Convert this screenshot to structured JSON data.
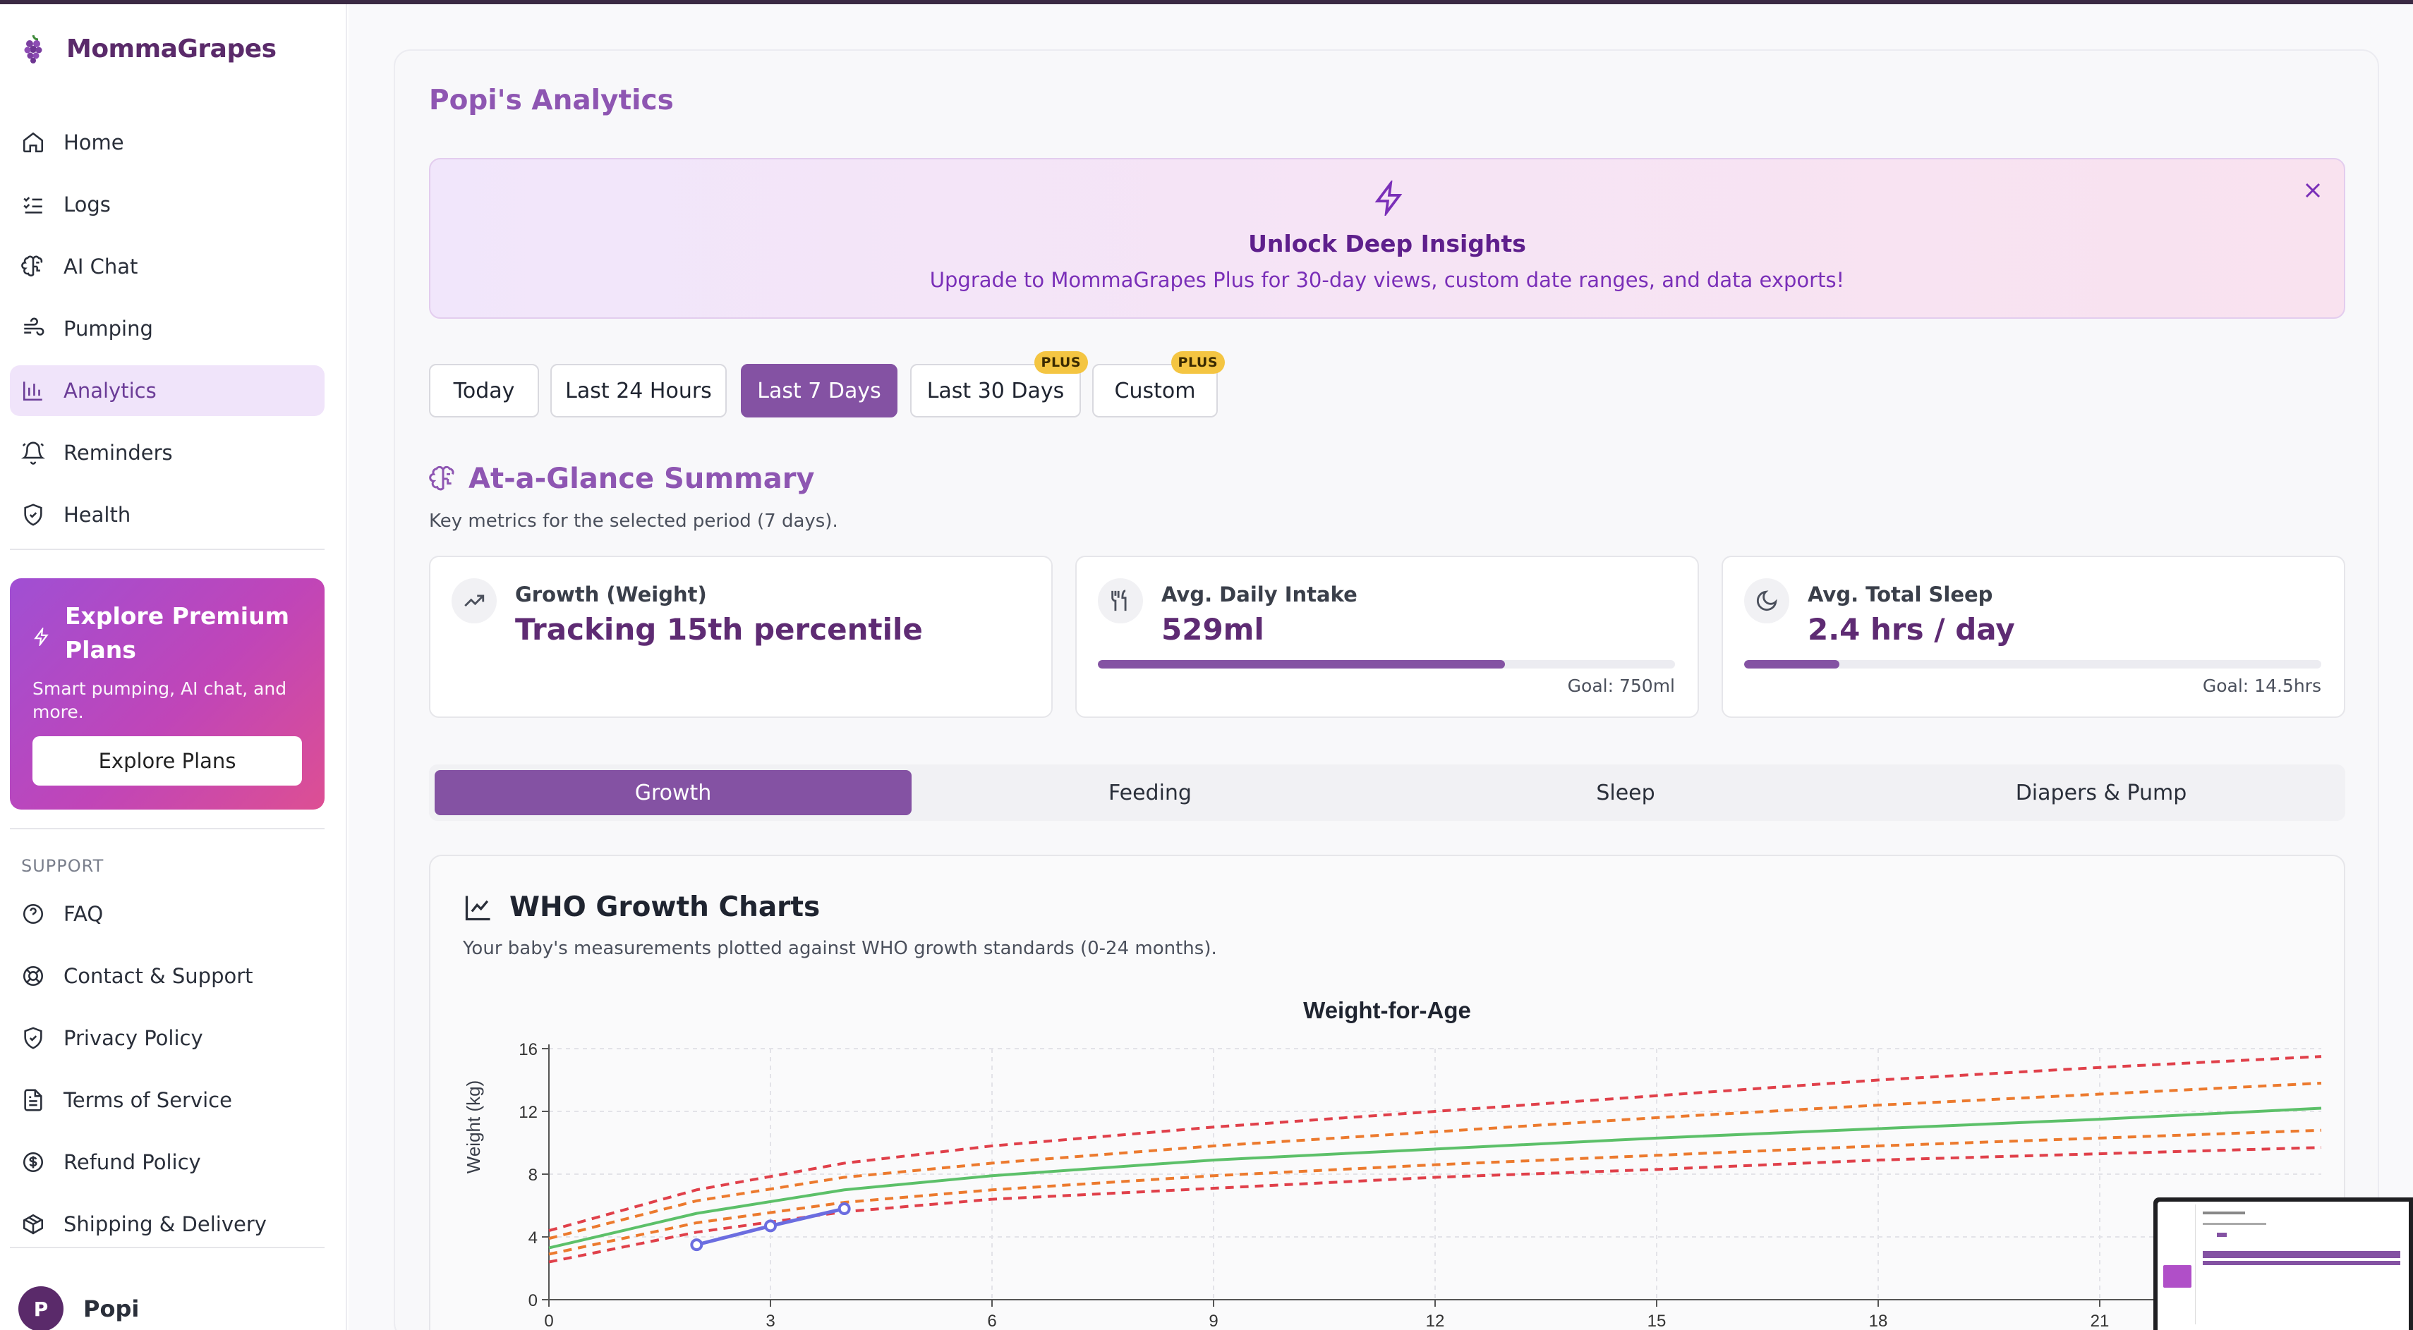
{
  "app": {
    "name": "MommaGrapes"
  },
  "sidebar": {
    "nav": [
      {
        "label": "Home",
        "icon": "home-icon"
      },
      {
        "label": "Logs",
        "icon": "list-check-icon"
      },
      {
        "label": "AI Chat",
        "icon": "brain-icon"
      },
      {
        "label": "Pumping",
        "icon": "pumping-icon"
      },
      {
        "label": "Analytics",
        "icon": "bar-chart-icon",
        "active": true
      },
      {
        "label": "Reminders",
        "icon": "bell-icon"
      },
      {
        "label": "Health",
        "icon": "shield-icon"
      }
    ],
    "promo": {
      "title": "Explore Premium Plans",
      "description": "Smart pumping, AI chat, and more.",
      "button": "Explore Plans"
    },
    "support_label": "SUPPORT",
    "support": [
      {
        "label": "FAQ",
        "icon": "help-circle-icon"
      },
      {
        "label": "Contact & Support",
        "icon": "lifebuoy-icon"
      },
      {
        "label": "Privacy Policy",
        "icon": "shield-icon"
      },
      {
        "label": "Terms of Service",
        "icon": "document-icon"
      },
      {
        "label": "Refund Policy",
        "icon": "dollar-icon"
      },
      {
        "label": "Shipping & Delivery",
        "icon": "package-icon"
      }
    ],
    "user": {
      "initial": "P",
      "name": "Popi"
    }
  },
  "main": {
    "title": "Popi's Analytics",
    "banner": {
      "title": "Unlock Deep Insights",
      "description": "Upgrade to MommaGrapes Plus for 30-day views, custom date ranges, and data exports!"
    },
    "ranges": [
      {
        "label": "Today"
      },
      {
        "label": "Last 24 Hours"
      },
      {
        "label": "Last 7 Days",
        "active": true
      },
      {
        "label": "Last 30 Days",
        "badge": "PLUS"
      },
      {
        "label": "Custom",
        "badge": "PLUS"
      }
    ],
    "summary": {
      "title": "At-a-Glance Summary",
      "subtitle": "Key metrics for the selected period (7 days).",
      "metrics": [
        {
          "label": "Growth (Weight)",
          "value": "Tracking 15th percentile",
          "icon": "trending-up-icon"
        },
        {
          "label": "Avg. Daily Intake",
          "value": "529ml",
          "goal": "Goal: 750ml",
          "progress": 0.705,
          "icon": "utensils-icon"
        },
        {
          "label": "Avg. Total Sleep",
          "value": "2.4 hrs / day",
          "goal": "Goal: 14.5hrs",
          "progress": 0.165,
          "icon": "moon-icon"
        }
      ]
    },
    "tabs": [
      {
        "label": "Growth",
        "active": true
      },
      {
        "label": "Feeding"
      },
      {
        "label": "Sleep"
      },
      {
        "label": "Diapers & Pump"
      }
    ],
    "who": {
      "title": "WHO Growth Charts",
      "subtitle": "Your baby's measurements plotted against WHO growth standards (0-24 months)."
    }
  },
  "colors": {
    "accent": "#8452a3",
    "brand": "#5a2a6a",
    "median": "#5cc069",
    "p15_85": "#ec7a2e",
    "p3_97": "#e0404a",
    "baby": "#6b6de0",
    "badge": "#f4c542"
  },
  "chart_data": {
    "type": "line",
    "title": "Weight-for-Age",
    "ylabel": "Weight (kg)",
    "xlabel": "",
    "xlim": [
      0,
      24
    ],
    "ylim": [
      0,
      16
    ],
    "xticks": [
      0,
      3,
      6,
      9,
      12,
      15,
      18,
      21
    ],
    "yticks": [
      0,
      4,
      8,
      12,
      16
    ],
    "grid": true,
    "series": [
      {
        "key": "p97",
        "color": "p3_97",
        "dash": true,
        "x": [
          0,
          2,
          4,
          6,
          9,
          12,
          15,
          18,
          21,
          24
        ],
        "y": [
          4.4,
          7.0,
          8.7,
          9.8,
          11.0,
          12.0,
          13.0,
          14.0,
          14.8,
          15.5
        ]
      },
      {
        "key": "p85",
        "color": "p15_85",
        "dash": true,
        "x": [
          0,
          2,
          4,
          6,
          9,
          12,
          15,
          18,
          21,
          24
        ],
        "y": [
          3.9,
          6.3,
          7.8,
          8.7,
          9.8,
          10.7,
          11.6,
          12.4,
          13.1,
          13.8
        ]
      },
      {
        "key": "p50",
        "color": "median",
        "dash": false,
        "x": [
          0,
          2,
          4,
          6,
          9,
          12,
          15,
          18,
          21,
          24
        ],
        "y": [
          3.3,
          5.5,
          7.0,
          7.9,
          8.9,
          9.6,
          10.3,
          10.9,
          11.5,
          12.2
        ]
      },
      {
        "key": "p15",
        "color": "p15_85",
        "dash": true,
        "x": [
          0,
          2,
          4,
          6,
          9,
          12,
          15,
          18,
          21,
          24
        ],
        "y": [
          2.9,
          4.9,
          6.2,
          7.0,
          7.9,
          8.6,
          9.2,
          9.8,
          10.3,
          10.8
        ]
      },
      {
        "key": "p3",
        "color": "p3_97",
        "dash": true,
        "x": [
          0,
          2,
          4,
          6,
          9,
          12,
          15,
          18,
          21,
          24
        ],
        "y": [
          2.4,
          4.3,
          5.6,
          6.4,
          7.1,
          7.8,
          8.3,
          8.9,
          9.3,
          9.7
        ]
      },
      {
        "key": "baby",
        "color": "baby",
        "dash": false,
        "markers": true,
        "x": [
          2,
          3,
          4
        ],
        "y": [
          3.5,
          4.7,
          5.8
        ]
      }
    ]
  }
}
